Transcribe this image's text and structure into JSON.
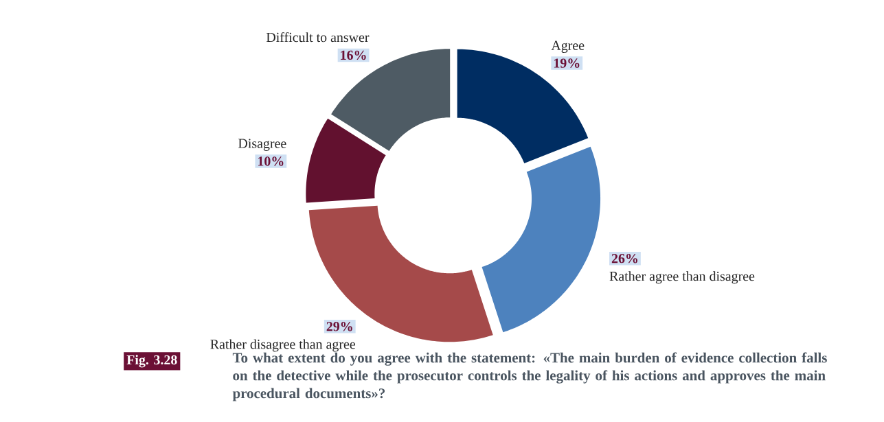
{
  "chart_data": {
    "type": "donut",
    "title": "To what extent do you agree with the statement: «The main burden of evidence collection falls on the detective while the prosecutor controls the legality of his actions and approves the main procedural documents»?",
    "categories": [
      "Agree",
      "Rather agree than disagree",
      "Rather disagree than agree",
      "Disagree",
      "Difficult to answer"
    ],
    "values": [
      19,
      26,
      29,
      10,
      16
    ],
    "value_labels": [
      "19%",
      "26%",
      "29%",
      "10%",
      "16%"
    ],
    "colors": [
      "#002d62",
      "#4d82be",
      "#a54a4a",
      "#62112f",
      "#4e5b64"
    ],
    "annotations": [
      "Fig. 3.28"
    ]
  }
}
